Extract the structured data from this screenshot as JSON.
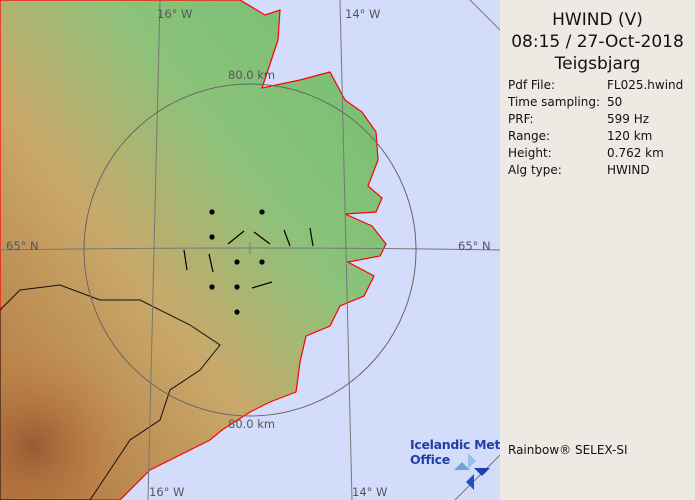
{
  "panel": {
    "product": "HWIND (V)",
    "datetime": "08:15 / 27-Oct-2018",
    "station": "Teigsbjarg",
    "rows": [
      {
        "key": "Pdf File:",
        "value": "FL025.hwind"
      },
      {
        "key": "Time sampling:",
        "value": "50"
      },
      {
        "key": "PRF:",
        "value": "599 Hz"
      },
      {
        "key": "Range:",
        "value": "120 km"
      },
      {
        "key": "Height:",
        "value": "0.762 km"
      },
      {
        "key": "Alg type:",
        "value": "HWIND"
      }
    ],
    "credit": "Rainbow® SELEX-SI"
  },
  "map": {
    "labels": {
      "lon_16_top": "16° W",
      "lon_14_top": "14° W",
      "lon_16_bottom": "16° W",
      "lon_14_bottom": "14° W",
      "lat_65_left": "65° N",
      "lat_65_right": "65° N",
      "range_top": "80.0 km",
      "range_bottom": "80.0 km"
    },
    "colors": {
      "ocean": "#d4dcfb",
      "coast": "#ff0000",
      "land_low": "#6fbf72",
      "land_high": "#c98a4a"
    }
  },
  "logo": {
    "line1": "Icelandic Met",
    "line2": "Office"
  }
}
